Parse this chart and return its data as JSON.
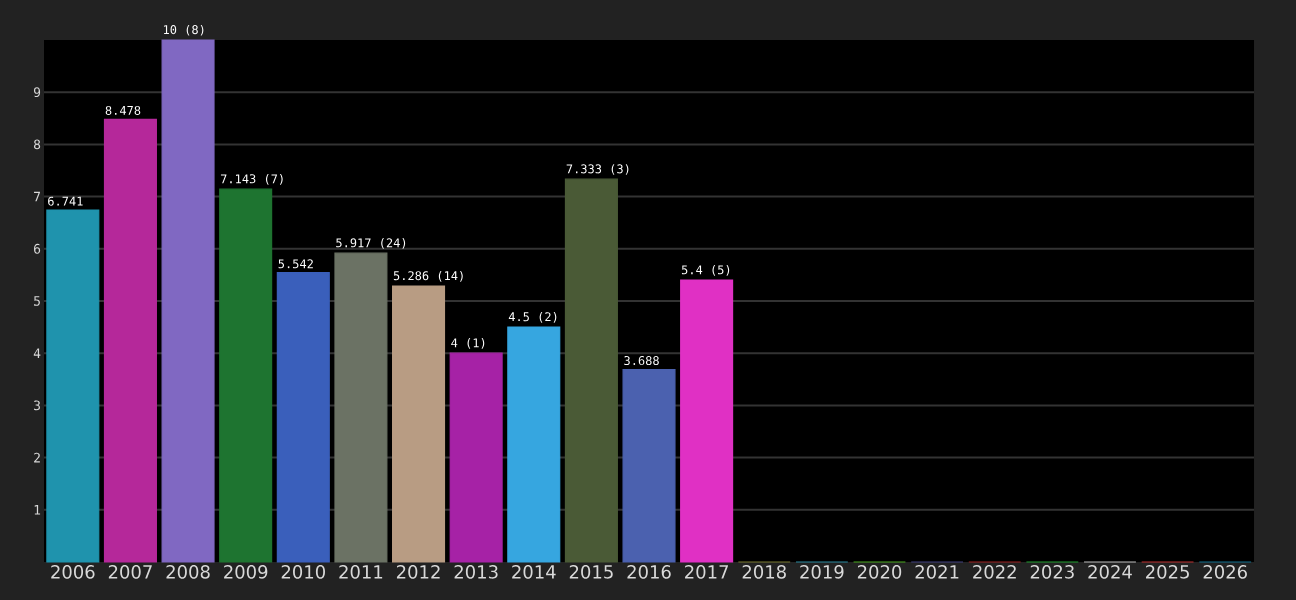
{
  "chart_data": {
    "type": "bar",
    "categories": [
      "2006",
      "2007",
      "2008",
      "2009",
      "2010",
      "2011",
      "2012",
      "2013",
      "2014",
      "2015",
      "2016",
      "2017",
      "2018",
      "2019",
      "2020",
      "2021",
      "2022",
      "2023",
      "2024",
      "2025",
      "2026"
    ],
    "values": [
      6.741,
      8.478,
      10,
      7.143,
      5.542,
      5.917,
      5.286,
      4,
      4.5,
      7.333,
      3.688,
      5.4,
      0,
      0,
      0,
      0,
      0,
      0,
      0,
      0,
      0
    ],
    "value_labels": [
      "6.741",
      "8.478",
      "10 (8)",
      "7.143 (7)",
      "5.542",
      "5.917 (24)",
      "5.286 (14)",
      "4 (1)",
      "4.5 (2)",
      "7.333 (3)",
      "3.688",
      "5.4 (5)",
      null,
      null,
      null,
      null,
      null,
      null,
      null,
      null,
      null
    ],
    "colors": [
      "#1f93ad",
      "#b5289a",
      "#8068c2",
      "#1e7430",
      "#3a5fbb",
      "#6b7264",
      "#b89c83",
      "#a622a6",
      "#36a6e0",
      "#4a5a36",
      "#4b61af",
      "#e030c4",
      "#7a7a30",
      "#2a8aa0",
      "#4aaa20",
      "#404080",
      "#a02020",
      "#20a030",
      "#c0c0c0",
      "#c03030",
      "#107090"
    ],
    "ylim": [
      0,
      10
    ],
    "yticks": [
      1,
      2,
      3,
      4,
      5,
      6,
      7,
      8,
      9
    ],
    "grid": "y"
  }
}
